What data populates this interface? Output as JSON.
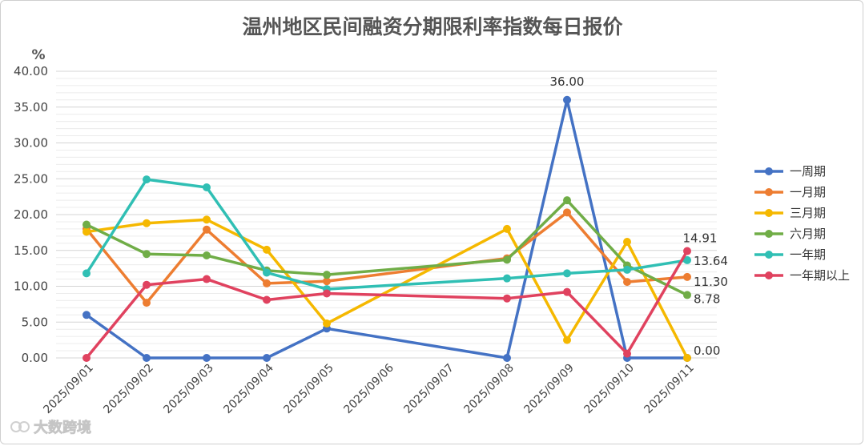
{
  "chart_data": {
    "type": "line",
    "title": "温州地区民间融资分期限利率指数每日报价",
    "ylabel": "%",
    "xlabel": "",
    "ylim": [
      0,
      40
    ],
    "y_ticks": [
      "0.00",
      "5.00",
      "10.00",
      "15.00",
      "20.00",
      "25.00",
      "30.00",
      "35.00",
      "40.00"
    ],
    "grid": true,
    "legend_position": "right",
    "categories": [
      "2025/09/01",
      "2025/09/02",
      "2025/09/03",
      "2025/09/04",
      "2025/09/05",
      "2025/09/06",
      "2025/09/07",
      "2025/09/08",
      "2025/09/09",
      "2025/09/10",
      "2025/09/11"
    ],
    "series": [
      {
        "name": "一周期",
        "color": "#4472c4",
        "values": [
          6.0,
          0.0,
          0.0,
          0.0,
          4.1,
          null,
          null,
          0.0,
          36.0,
          0.0,
          0.0
        ]
      },
      {
        "name": "一月期",
        "color": "#ed7d31",
        "values": [
          18.0,
          7.7,
          17.9,
          10.4,
          10.7,
          null,
          null,
          13.9,
          20.3,
          10.6,
          11.3
        ]
      },
      {
        "name": "三月期",
        "color": "#f5b800",
        "values": [
          17.6,
          18.8,
          19.3,
          15.1,
          4.8,
          null,
          null,
          18.0,
          2.5,
          16.2,
          0.0
        ]
      },
      {
        "name": "六月期",
        "color": "#70ad47",
        "values": [
          18.6,
          14.5,
          14.3,
          12.2,
          11.6,
          null,
          null,
          13.7,
          22.0,
          12.9,
          8.78
        ]
      },
      {
        "name": "一年期",
        "color": "#30bfb4",
        "values": [
          11.8,
          24.9,
          23.8,
          11.9,
          9.6,
          null,
          null,
          11.1,
          11.8,
          12.3,
          13.64
        ]
      },
      {
        "name": "一年期以上",
        "color": "#e0425f",
        "values": [
          0.0,
          10.2,
          11.0,
          8.1,
          9.0,
          null,
          null,
          8.3,
          9.2,
          0.6,
          14.91
        ]
      }
    ],
    "data_labels": [
      "36.00",
      "14.91",
      "13.64",
      "11.30",
      "8.78",
      "0.00"
    ]
  },
  "watermark": "大数跨境"
}
